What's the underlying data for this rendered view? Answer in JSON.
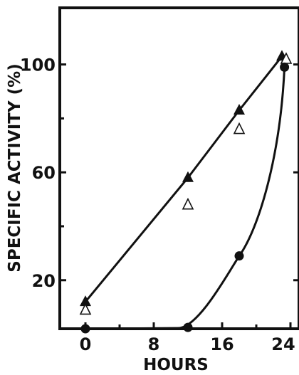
{
  "chart_data": {
    "type": "line",
    "title": "",
    "xlabel": "HOURS",
    "ylabel": "SPECIFIC ACTIVITY (%)",
    "xlim": [
      -3,
      25
    ],
    "ylim": [
      2,
      121
    ],
    "x_ticks": [
      {
        "value": 0,
        "label": "0"
      },
      {
        "value": 8,
        "label": "8"
      },
      {
        "value": 16,
        "label": "16"
      },
      {
        "value": 24,
        "label": "24"
      }
    ],
    "y_ticks": [
      {
        "value": 20,
        "label": "20"
      },
      {
        "value": 60,
        "label": "60"
      },
      {
        "value": 100,
        "label": "100"
      }
    ],
    "x_minor_ticks": [
      4,
      12,
      20
    ],
    "y_minor_ticks": [
      40,
      80
    ],
    "grid": false,
    "legend": "none",
    "series": [
      {
        "marker": "filled-triangle",
        "color": "#111111",
        "line": "straight",
        "points": [
          [
            0,
            12
          ],
          [
            12,
            58
          ],
          [
            18,
            83
          ],
          [
            23,
            103
          ]
        ]
      },
      {
        "marker": "open-triangle",
        "color": "#111111",
        "line": "none",
        "points": [
          [
            0,
            9
          ],
          [
            12,
            48
          ],
          [
            18,
            76
          ],
          [
            23.5,
            102
          ]
        ]
      },
      {
        "marker": "filled-circle",
        "color": "#111111",
        "line": "smooth",
        "points": [
          [
            0,
            2
          ],
          [
            12,
            2.5
          ],
          [
            18,
            29
          ],
          [
            23.3,
            99
          ]
        ]
      }
    ]
  }
}
